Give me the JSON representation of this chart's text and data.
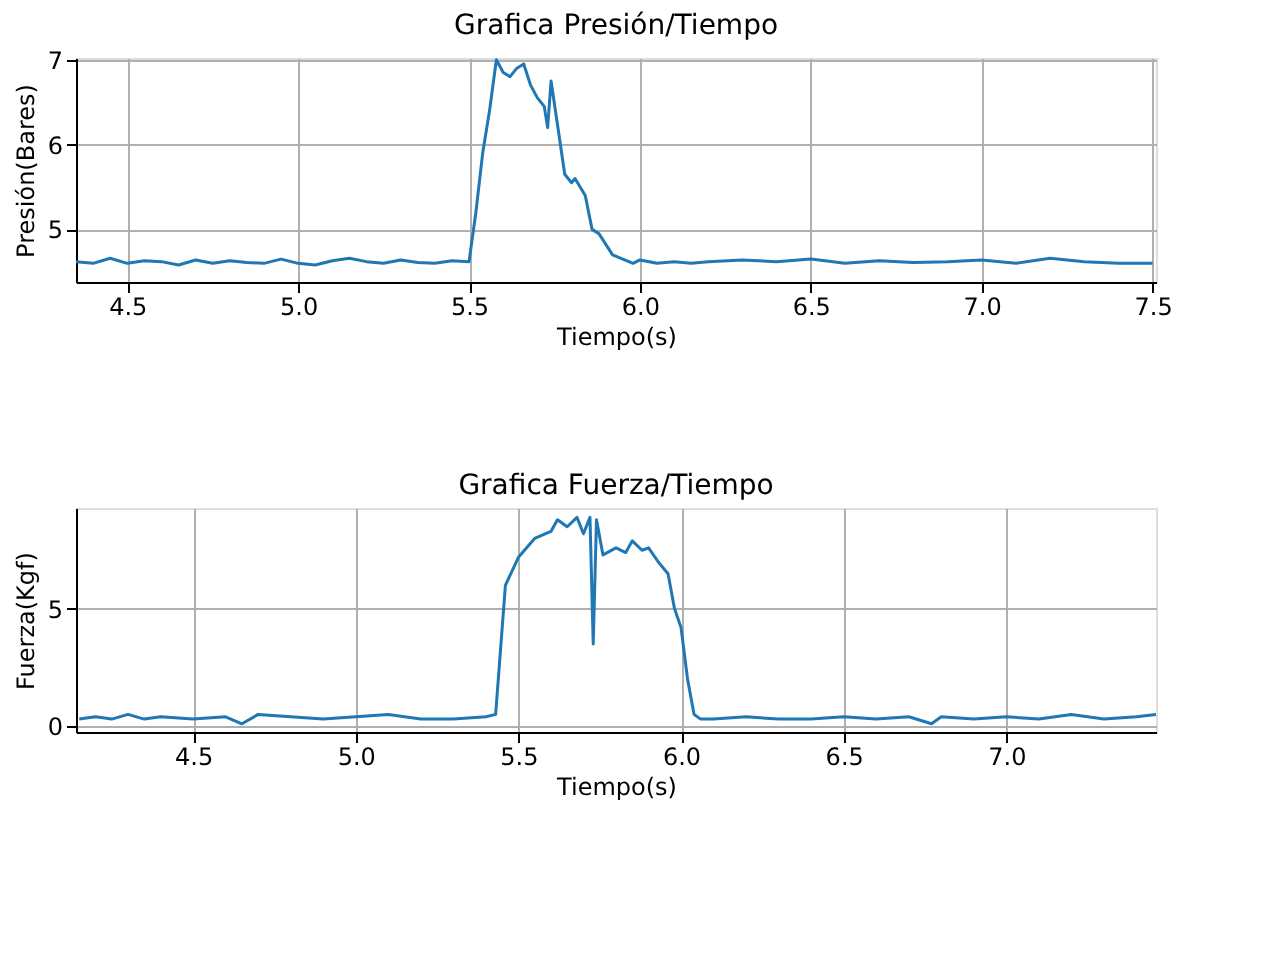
{
  "chart_data": [
    {
      "type": "line",
      "title": "Grafica Presión/Tiempo",
      "xlabel": "Tiempo(s)",
      "ylabel": "Presión(Bares)",
      "xlim": [
        4.35,
        7.51
      ],
      "ylim": [
        4.38,
        7.02
      ],
      "xticks": [
        4.5,
        {
          "value": 5,
          "label": "5.0"
        },
        5.5,
        {
          "value": 6,
          "label": "6.0"
        },
        6.5,
        {
          "value": 7,
          "label": "7.0"
        },
        7.5
      ],
      "yticks": [
        5,
        6,
        7
      ],
      "grid": true,
      "series": [
        {
          "color": "#1f77b4",
          "x": [
            4.35,
            4.4,
            4.45,
            4.5,
            4.55,
            4.6,
            4.65,
            4.7,
            4.75,
            4.8,
            4.85,
            4.9,
            4.95,
            5.0,
            5.05,
            5.1,
            5.15,
            5.2,
            5.25,
            5.3,
            5.35,
            5.4,
            5.45,
            5.5,
            5.52,
            5.54,
            5.56,
            5.58,
            5.6,
            5.62,
            5.64,
            5.66,
            5.68,
            5.7,
            5.72,
            5.73,
            5.74,
            5.76,
            5.78,
            5.8,
            5.81,
            5.84,
            5.86,
            5.88,
            5.92,
            5.95,
            5.98,
            6.0,
            6.05,
            6.1,
            6.15,
            6.2,
            6.3,
            6.4,
            6.5,
            6.6,
            6.7,
            6.8,
            6.9,
            7.0,
            7.1,
            7.2,
            7.3,
            7.4,
            7.5
          ],
          "values": [
            4.62,
            4.6,
            4.66,
            4.6,
            4.63,
            4.62,
            4.58,
            4.64,
            4.6,
            4.63,
            4.61,
            4.6,
            4.65,
            4.6,
            4.58,
            4.63,
            4.66,
            4.62,
            4.6,
            4.64,
            4.61,
            4.6,
            4.63,
            4.62,
            5.2,
            5.9,
            6.4,
            7.0,
            6.85,
            6.8,
            6.9,
            6.95,
            6.7,
            6.55,
            6.45,
            6.2,
            6.75,
            6.2,
            5.65,
            5.55,
            5.6,
            5.4,
            5.0,
            4.95,
            4.7,
            4.65,
            4.6,
            4.64,
            4.6,
            4.62,
            4.6,
            4.62,
            4.64,
            4.62,
            4.65,
            4.6,
            4.63,
            4.61,
            4.62,
            4.64,
            4.6,
            4.66,
            4.62,
            4.6,
            4.6
          ]
        }
      ]
    },
    {
      "type": "line",
      "title": "Grafica Fuerza/Tiempo",
      "xlabel": "Tiempo(s)",
      "ylabel": "Fuerza(Kgf)",
      "xlim": [
        4.14,
        7.46
      ],
      "ylim": [
        -0.25,
        9.3
      ],
      "xticks": [
        4.5,
        {
          "value": 5,
          "label": "5.0"
        },
        5.5,
        {
          "value": 6,
          "label": "6.0"
        },
        6.5,
        {
          "value": 7,
          "label": "7.0"
        }
      ],
      "yticks": [
        0,
        5
      ],
      "grid": true,
      "series": [
        {
          "color": "#1f77b4",
          "x": [
            4.15,
            4.2,
            4.25,
            4.3,
            4.35,
            4.4,
            4.5,
            4.6,
            4.65,
            4.7,
            4.8,
            4.9,
            5.0,
            5.1,
            5.2,
            5.3,
            5.4,
            5.43,
            5.46,
            5.5,
            5.55,
            5.6,
            5.62,
            5.65,
            5.68,
            5.7,
            5.72,
            5.73,
            5.74,
            5.76,
            5.8,
            5.83,
            5.85,
            5.88,
            5.9,
            5.93,
            5.96,
            5.98,
            6.0,
            6.02,
            6.04,
            6.06,
            6.1,
            6.2,
            6.3,
            6.4,
            6.5,
            6.6,
            6.7,
            6.77,
            6.8,
            6.9,
            7.0,
            7.1,
            7.2,
            7.3,
            7.4,
            7.46
          ],
          "values": [
            0.3,
            0.4,
            0.3,
            0.5,
            0.3,
            0.4,
            0.3,
            0.4,
            0.1,
            0.5,
            0.4,
            0.3,
            0.4,
            0.5,
            0.3,
            0.3,
            0.4,
            0.5,
            6.0,
            7.2,
            8.0,
            8.3,
            8.8,
            8.5,
            8.9,
            8.2,
            8.9,
            3.5,
            8.8,
            7.3,
            7.6,
            7.4,
            7.9,
            7.5,
            7.6,
            7.0,
            6.5,
            5.0,
            4.2,
            2.0,
            0.5,
            0.3,
            0.3,
            0.4,
            0.3,
            0.3,
            0.4,
            0.3,
            0.4,
            0.1,
            0.4,
            0.3,
            0.4,
            0.3,
            0.5,
            0.3,
            0.4,
            0.5
          ]
        }
      ]
    }
  ]
}
